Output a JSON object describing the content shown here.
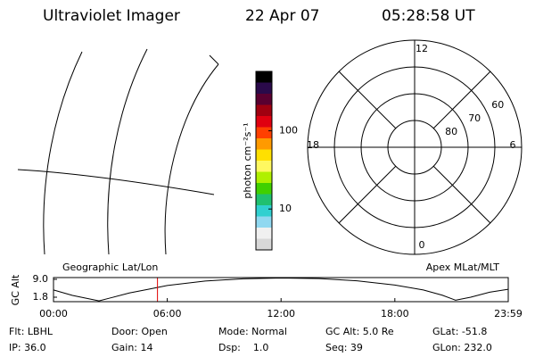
{
  "header": {
    "instrument": "Ultraviolet Imager",
    "date": "22 Apr 07",
    "time": "05:28:58 UT"
  },
  "colorbar": {
    "label": "photon cm⁻²s⁻¹",
    "scale": "log",
    "clim": [
      3,
      575
    ],
    "ticks": [
      10,
      100
    ],
    "colors": [
      "#000000",
      "#2a0a4a",
      "#5a0030",
      "#a00010",
      "#e00010",
      "#ff4000",
      "#ff9a00",
      "#ffe000",
      "#fff860",
      "#b0f000",
      "#40d000",
      "#20c070",
      "#30d0d0",
      "#90d8f0",
      "#f0f0f0",
      "#d8d8d8"
    ]
  },
  "polar": {
    "mlt_ticks": [
      12,
      18,
      6,
      0
    ],
    "lat_rings": [
      80,
      70,
      60
    ],
    "lat_limit": 50
  },
  "chart_data": {
    "type": "line",
    "ylabel": "GC Alt",
    "left_label": "Geographic Lat/Lon",
    "right_label": "Apex MLat/MLT",
    "x": [
      0,
      1,
      2.4,
      3,
      4,
      5,
      6,
      8,
      10,
      12,
      14,
      16,
      18,
      19.5,
      20.5,
      21.2,
      22,
      23,
      23.98
    ],
    "values": [
      4.7,
      2.5,
      0.3,
      1.5,
      3.5,
      5.0,
      6.5,
      8.3,
      9.2,
      9.5,
      9.3,
      8.4,
      6.7,
      4.7,
      2.6,
      0.6,
      1.8,
      3.8,
      5.0
    ],
    "color": "#000000",
    "marker_x": 5.483,
    "marker_color": "#e00000",
    "xlim": [
      0,
      23.98
    ],
    "xticks": [
      {
        "value": 0,
        "label": "00:00"
      },
      {
        "value": 6,
        "label": "06:00"
      },
      {
        "value": 12,
        "label": "12:00"
      },
      {
        "value": 18,
        "label": "18:00"
      },
      {
        "value": 23.98,
        "label": "23:59"
      }
    ],
    "ylim": [
      0,
      9.7
    ],
    "yticks": [
      1.8,
      {
        "value": 9,
        "label": "9.0"
      }
    ]
  },
  "status": {
    "rows": [
      [
        "Flt: LBHL",
        "Door: Open",
        "Mode: Normal",
        "GC Alt: 5.0 Re",
        "GLat: -51.8"
      ],
      [
        "IP: 36.0",
        "Gain: 14",
        "Dsp:    1.0",
        "Seq: 39",
        "GLon: 232.0"
      ]
    ]
  }
}
